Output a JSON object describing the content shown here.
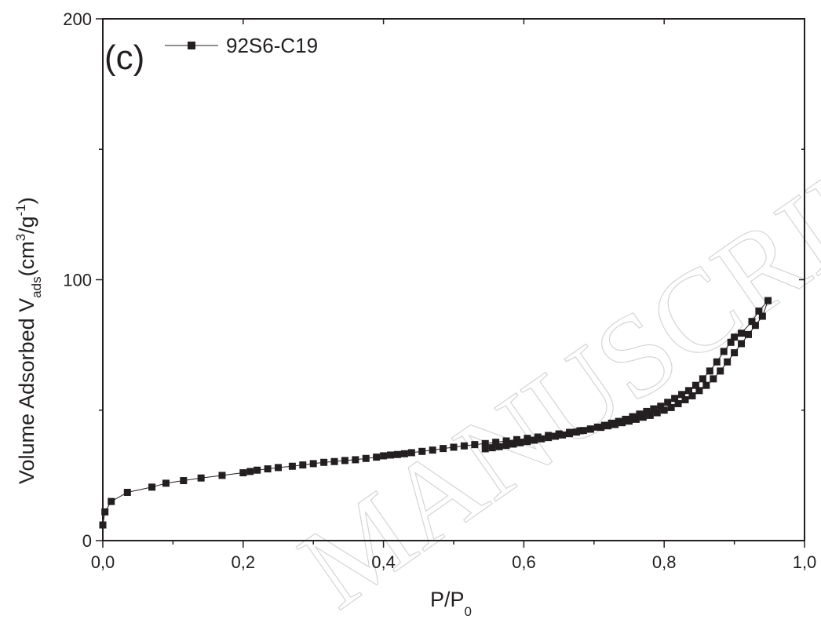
{
  "chart_data": {
    "type": "line",
    "panel_label": "(c)",
    "watermark": "MANUSCRIPT",
    "xlabel": {
      "main": "P/P",
      "sub": "0"
    },
    "ylabel": {
      "main": "Volume Adsorbed V",
      "sub": "ads",
      "unit_open": "(cm",
      "unit_sup": "3",
      "unit_mid": "/g",
      "unit_sup2": "-1",
      "unit_close": ")"
    },
    "xlim": [
      0.0,
      1.0
    ],
    "ylim": [
      0,
      200
    ],
    "xticks": [
      0.0,
      0.2,
      0.4,
      0.6,
      0.8,
      1.0
    ],
    "xtick_labels": [
      "0,0",
      "0,2",
      "0,4",
      "0,6",
      "0,8",
      "1,0"
    ],
    "yticks": [
      0,
      100,
      200
    ],
    "ytick_labels": [
      "0",
      "100",
      "200"
    ],
    "legend_position": "top-left",
    "series": [
      {
        "name": "92S6-C19",
        "color": "#231f20",
        "marker": "square",
        "x": [
          0.0,
          0.003,
          0.012,
          0.035,
          0.07,
          0.09,
          0.115,
          0.14,
          0.17,
          0.2,
          0.21,
          0.22,
          0.235,
          0.25,
          0.27,
          0.285,
          0.3,
          0.315,
          0.33,
          0.345,
          0.36,
          0.375,
          0.39,
          0.4,
          0.41,
          0.42,
          0.43,
          0.44,
          0.455,
          0.47,
          0.485,
          0.5,
          0.515,
          0.53,
          0.545,
          0.56,
          0.575,
          0.59,
          0.605,
          0.62,
          0.635,
          0.65,
          0.665,
          0.68,
          0.695,
          0.71,
          0.72,
          0.73,
          0.74,
          0.75,
          0.76,
          0.77,
          0.78,
          0.79,
          0.8,
          0.81,
          0.82,
          0.83,
          0.84,
          0.85,
          0.86,
          0.87,
          0.88,
          0.89,
          0.9,
          0.91,
          0.92,
          0.93,
          0.94,
          0.948,
          0.935,
          0.925,
          0.91,
          0.9,
          0.895,
          0.885,
          0.875,
          0.865,
          0.855,
          0.845,
          0.835,
          0.825,
          0.815,
          0.805,
          0.795,
          0.785,
          0.775,
          0.765,
          0.755,
          0.745,
          0.735,
          0.725,
          0.715,
          0.705,
          0.695,
          0.685,
          0.675,
          0.665,
          0.655,
          0.645,
          0.635,
          0.625,
          0.615,
          0.605,
          0.595,
          0.585,
          0.575,
          0.565,
          0.555,
          0.545
        ],
        "y": [
          6,
          11,
          15,
          18.5,
          20.5,
          22,
          23,
          24,
          25,
          26,
          26.5,
          27,
          27.5,
          28,
          28.5,
          29,
          29.5,
          30,
          30.3,
          30.7,
          31,
          31.5,
          32,
          32.5,
          32.8,
          33,
          33.3,
          33.7,
          34.2,
          34.7,
          35.3,
          35.8,
          36.3,
          36.8,
          37.2,
          37.7,
          38.2,
          38.7,
          39.2,
          39.7,
          40.3,
          40.9,
          41.5,
          42.1,
          42.7,
          43.4,
          44,
          44.5,
          45.2,
          45.8,
          46.5,
          47.3,
          48,
          49,
          50,
          51,
          52.5,
          54,
          55.5,
          57.5,
          59.5,
          62,
          65,
          68.5,
          72,
          75.5,
          79,
          82.5,
          86,
          92,
          88,
          84,
          79.5,
          78,
          76,
          72.5,
          68.5,
          65,
          62,
          59.5,
          57.5,
          56,
          54.5,
          53,
          51.5,
          50.5,
          49.5,
          48.5,
          47.5,
          46.5,
          45.7,
          45,
          44.2,
          43.5,
          42.8,
          42.2,
          41.6,
          41,
          40.5,
          40,
          39.5,
          39,
          38.5,
          38,
          37.5,
          37,
          36.5,
          36,
          35.6,
          35.2
        ]
      }
    ]
  }
}
